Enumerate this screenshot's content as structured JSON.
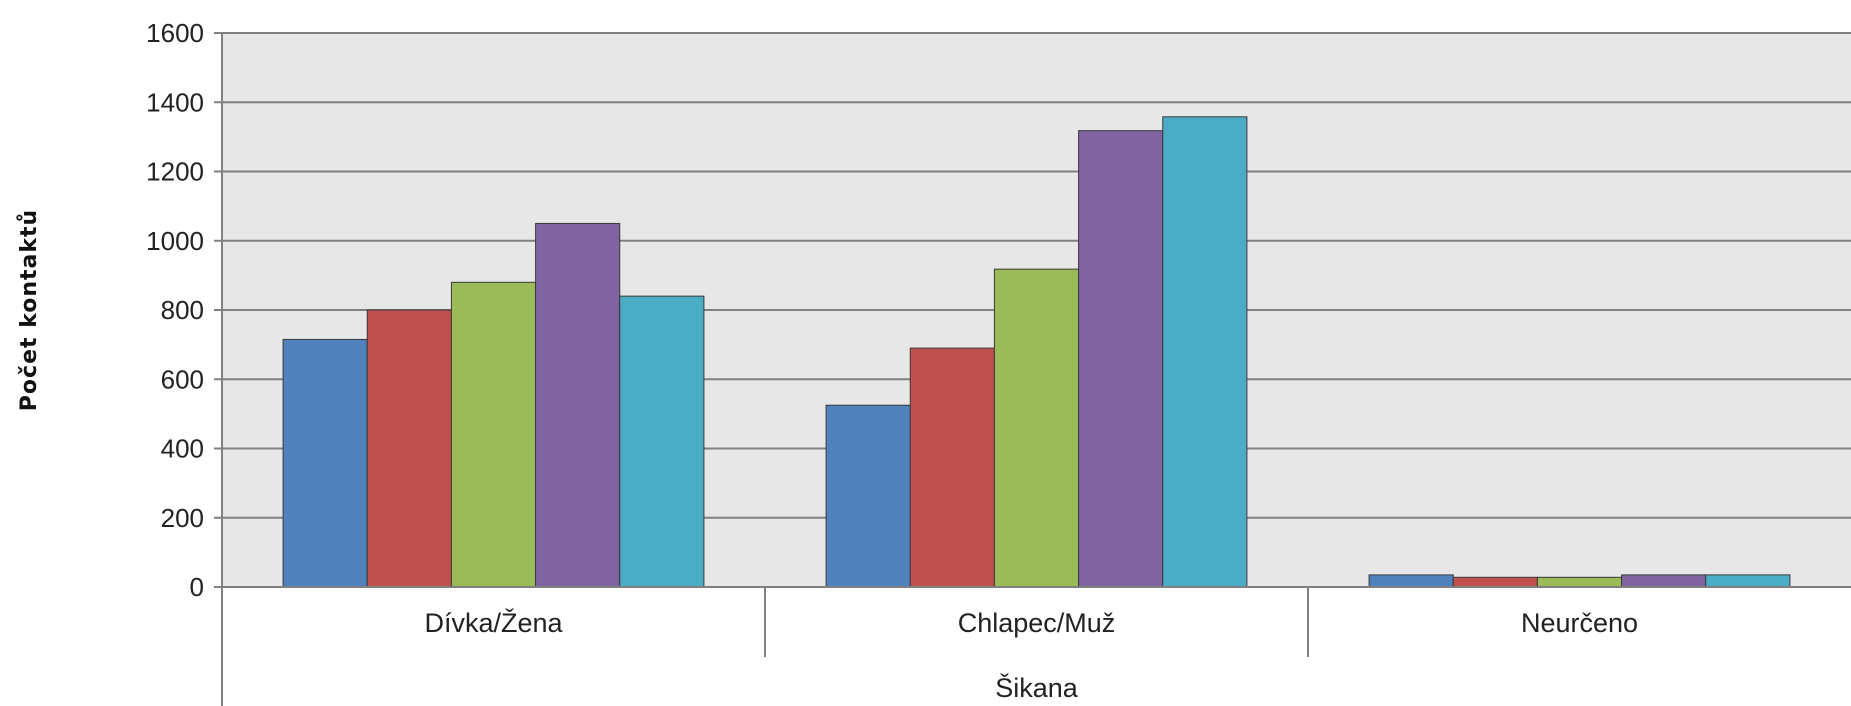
{
  "chart_data": {
    "type": "bar",
    "title": "",
    "xlabel": "Šikana",
    "ylabel": "Počet kontaktů",
    "categories": [
      "Dívka/Žena",
      "Chlapec/Muž",
      "Neurčeno"
    ],
    "ylim": [
      0,
      1600
    ],
    "yticks": [
      0,
      200,
      400,
      600,
      800,
      1000,
      1200,
      1400,
      1600
    ],
    "grid": true,
    "legend": "none",
    "series": [
      {
        "color": "#4f81bd",
        "values": [
          715,
          525,
          35
        ]
      },
      {
        "color": "#c0504d",
        "values": [
          800,
          690,
          28
        ]
      },
      {
        "color": "#9bbb59",
        "values": [
          880,
          918,
          28
        ]
      },
      {
        "color": "#8064a2",
        "values": [
          1050,
          1318,
          35
        ]
      },
      {
        "color": "#4bacc6",
        "values": [
          840,
          1358,
          35
        ]
      }
    ],
    "plot_background": "#e7e7e7",
    "gridline_color": "#808080"
  }
}
